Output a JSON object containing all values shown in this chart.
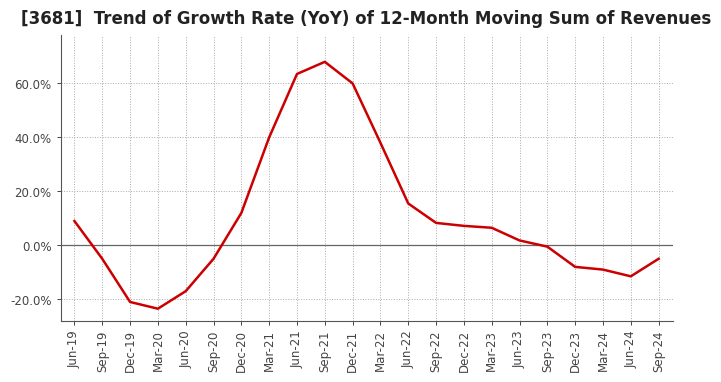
{
  "title": "[3681]  Trend of Growth Rate (YoY) of 12-Month Moving Sum of Revenues",
  "line_color": "#cc0000",
  "background_color": "#ffffff",
  "grid_color": "#aaaaaa",
  "x_labels": [
    "Jun-19",
    "Sep-19",
    "Dec-19",
    "Mar-20",
    "Jun-20",
    "Sep-20",
    "Dec-20",
    "Mar-21",
    "Jun-21",
    "Sep-21",
    "Dec-21",
    "Mar-22",
    "Jun-22",
    "Sep-22",
    "Dec-22",
    "Mar-23",
    "Jun-23",
    "Sep-23",
    "Dec-23",
    "Mar-24",
    "Jun-24",
    "Sep-24"
  ],
  "y_values": [
    0.09,
    -0.05,
    -0.21,
    -0.235,
    -0.17,
    -0.05,
    0.12,
    0.4,
    0.635,
    0.68,
    0.6,
    0.38,
    0.155,
    0.083,
    0.072,
    0.065,
    0.018,
    -0.005,
    -0.08,
    -0.09,
    -0.115,
    -0.05
  ],
  "ylim": [
    -0.28,
    0.78
  ],
  "yticks": [
    -0.2,
    0.0,
    0.2,
    0.4,
    0.6
  ],
  "ytick_labels": [
    "-20.0%",
    "0.0%",
    "20.0%",
    "40.0%",
    "60.0%"
  ],
  "title_fontsize": 12,
  "tick_fontsize": 8.5,
  "line_width": 1.8
}
